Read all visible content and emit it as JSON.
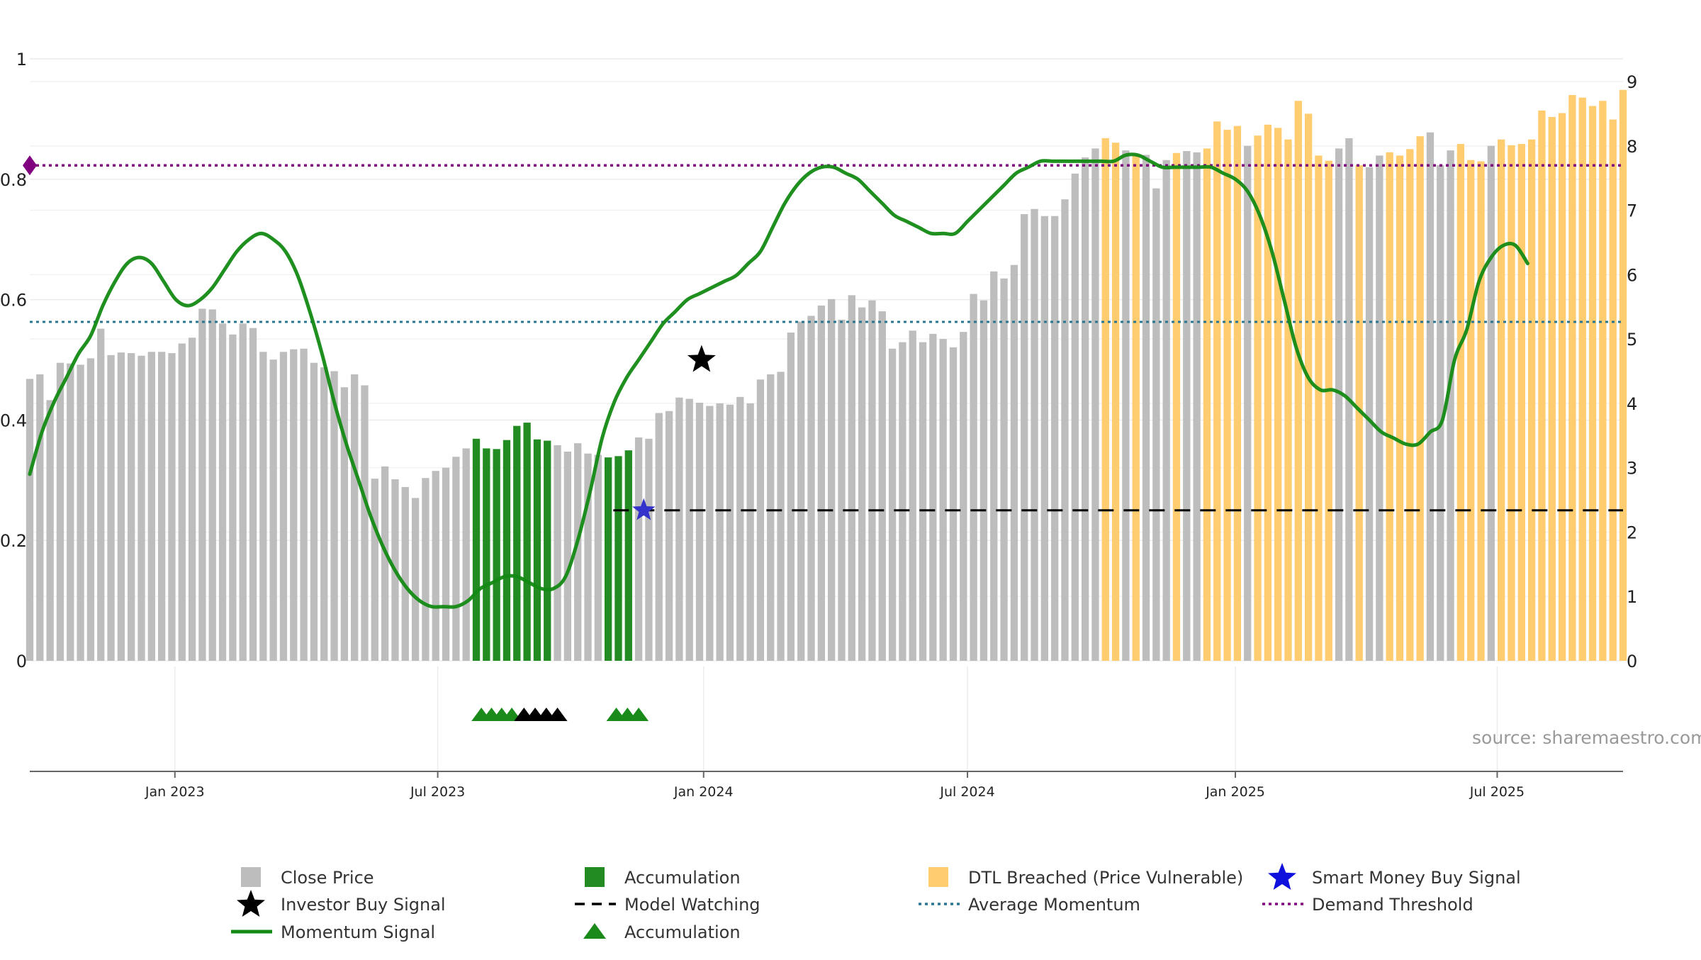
{
  "chart_data": {
    "type": "bar+line",
    "title": "",
    "source_text": "source: sharemaestro.com",
    "colors": {
      "close": "#bdbdbd",
      "accumulation": "#228b22",
      "dtl": "#ffcc70",
      "momentum": "#138a13",
      "average": "#2a7590",
      "threshold": "#800080",
      "model": "#000000",
      "smart_money": "#3333cc",
      "investor": "#000000",
      "triangle_green": "#1a8a1a",
      "triangle_black": "#000000"
    },
    "left_axis": {
      "range": [
        0,
        1
      ],
      "ticks": [
        "0",
        "0.2",
        "0.4",
        "0.6",
        "0.8",
        "1"
      ],
      "tick_values": [
        0,
        0.2,
        0.4,
        0.6,
        0.8,
        1
      ]
    },
    "right_axis": {
      "range": [
        0,
        9
      ],
      "ticks": [
        "0",
        "1",
        "2",
        "3",
        "4",
        "5",
        "6",
        "7",
        "8",
        "9"
      ],
      "tick_values": [
        0,
        1,
        2,
        3,
        4,
        5,
        6,
        7,
        8,
        9
      ]
    },
    "x_axis": {
      "start_week": 0,
      "end_week": 157,
      "ticks": [
        {
          "label": "Jan 2023",
          "week": 14.3
        },
        {
          "label": "Jul 2023",
          "week": 40.2
        },
        {
          "label": "Jan 2024",
          "week": 66.4
        },
        {
          "label": "Jul 2024",
          "week": 92.4
        },
        {
          "label": "Jan 2025",
          "week": 118.8
        },
        {
          "label": "Jul 2025",
          "week": 144.6
        }
      ]
    },
    "close_prices": [
      4.38,
      4.45,
      4.05,
      4.63,
      4.62,
      4.6,
      4.7,
      5.16,
      4.75,
      4.79,
      4.78,
      4.74,
      4.8,
      4.8,
      4.78,
      4.93,
      5.02,
      5.47,
      5.46,
      5.24,
      5.07,
      5.24,
      5.17,
      4.8,
      4.68,
      4.8,
      4.84,
      4.85,
      4.63,
      4.56,
      4.5,
      4.25,
      4.45,
      4.28,
      2.83,
      3.02,
      2.82,
      2.7,
      2.53,
      2.84,
      2.95,
      3.0,
      3.17,
      3.3,
      3.45,
      3.3,
      3.29,
      3.43,
      3.65,
      3.7,
      3.44,
      3.42,
      3.35,
      3.25,
      3.38,
      3.22,
      3.2,
      3.16,
      3.18,
      3.27,
      3.47,
      3.45,
      3.85,
      3.88,
      4.09,
      4.07,
      4.01,
      3.96,
      4.0,
      3.98,
      4.1,
      4.0,
      4.37,
      4.45,
      4.49,
      5.1,
      5.27,
      5.36,
      5.52,
      5.62,
      5.3,
      5.68,
      5.49,
      5.6,
      5.43,
      4.85,
      4.95,
      5.13,
      4.95,
      5.08,
      5.0,
      4.87,
      5.11,
      5.7,
      5.6,
      6.05,
      5.94,
      6.15,
      6.94,
      7.02,
      6.91,
      6.91,
      7.17,
      7.57,
      7.82,
      7.96,
      8.12,
      8.05,
      7.93,
      7.85,
      7.86,
      7.34,
      7.78,
      7.89,
      7.92,
      7.9,
      7.96,
      8.38,
      8.25,
      8.31,
      8.0,
      8.16,
      8.33,
      8.28,
      8.1,
      8.7,
      8.5,
      7.85,
      7.77,
      7.96,
      8.12,
      7.7,
      7.67,
      7.85,
      7.9,
      7.85,
      7.95,
      8.15,
      8.21,
      7.7,
      7.93,
      8.03,
      7.78,
      7.76,
      8.0,
      8.1,
      8.01,
      8.03,
      8.1,
      8.55,
      8.45,
      8.51,
      8.79,
      8.75,
      8.62,
      8.7,
      8.41,
      8.87
    ],
    "accumulation_weeks": [
      44,
      45,
      46,
      47,
      48,
      49,
      50,
      51,
      57,
      58,
      59
    ],
    "dtl_weeks": [
      106,
      107,
      109,
      113,
      116,
      117,
      118,
      119,
      121,
      122,
      123,
      124,
      125,
      126,
      127,
      128,
      131,
      134,
      135,
      136,
      137,
      141,
      142,
      143,
      145,
      146,
      147,
      148,
      149,
      150,
      151,
      152,
      153,
      154,
      155,
      156,
      157
    ],
    "momentum_signal": [
      0.31,
      0.38,
      0.43,
      0.47,
      0.51,
      0.54,
      0.59,
      0.63,
      0.66,
      0.67,
      0.66,
      0.63,
      0.6,
      0.59,
      0.6,
      0.62,
      0.65,
      0.68,
      0.7,
      0.71,
      0.7,
      0.68,
      0.64,
      0.58,
      0.51,
      0.43,
      0.36,
      0.3,
      0.24,
      0.19,
      0.15,
      0.12,
      0.1,
      0.09,
      0.09,
      0.09,
      0.1,
      0.12,
      0.13,
      0.14,
      0.14,
      0.13,
      0.12,
      0.12,
      0.14,
      0.2,
      0.28,
      0.37,
      0.43,
      0.47,
      0.5,
      0.53,
      0.56,
      0.58,
      0.6,
      0.61,
      0.62,
      0.63,
      0.64,
      0.66,
      0.68,
      0.72,
      0.76,
      0.79,
      0.81,
      0.82,
      0.82,
      0.81,
      0.8,
      0.78,
      0.76,
      0.74,
      0.73,
      0.72,
      0.71,
      0.71,
      0.71,
      0.73,
      0.75,
      0.77,
      0.79,
      0.81,
      0.82,
      0.83,
      0.83,
      0.83,
      0.83,
      0.83,
      0.83,
      0.83,
      0.84,
      0.84,
      0.83,
      0.82,
      0.82,
      0.82,
      0.82,
      0.82,
      0.81,
      0.8,
      0.78,
      0.74,
      0.68,
      0.6,
      0.52,
      0.47,
      0.45,
      0.45,
      0.44,
      0.42,
      0.4,
      0.38,
      0.37,
      0.36,
      0.36,
      0.38,
      0.4,
      0.5,
      0.55,
      0.63,
      0.67,
      0.69,
      0.69,
      0.66
    ],
    "momentum_weeks_step": 1.2,
    "average_momentum": 0.563,
    "demand_threshold": 0.823,
    "model_watching": {
      "value": 0.25,
      "start_week": 57.5,
      "end_week": 157
    },
    "smart_money_buy": {
      "week": 60.5,
      "value": 0.25
    },
    "investor_buy": {
      "week": 66.2,
      "value": 0.5
    },
    "accumulation_markers": [
      {
        "week": 44.5,
        "color": "green"
      },
      {
        "week": 45.5,
        "color": "green"
      },
      {
        "week": 46.5,
        "color": "green"
      },
      {
        "week": 47.5,
        "color": "green"
      },
      {
        "week": 48.7,
        "color": "black"
      },
      {
        "week": 49.8,
        "color": "black"
      },
      {
        "week": 50.9,
        "color": "black"
      },
      {
        "week": 52.0,
        "color": "black"
      },
      {
        "week": 57.8,
        "color": "green"
      },
      {
        "week": 58.9,
        "color": "green"
      },
      {
        "week": 60.0,
        "color": "green"
      }
    ],
    "legend": [
      {
        "label": "Close Price",
        "kind": "square",
        "color": "close"
      },
      {
        "label": "Accumulation",
        "kind": "square",
        "color": "accumulation"
      },
      {
        "label": "DTL Breached (Price Vulnerable)",
        "kind": "square",
        "color": "dtl"
      },
      {
        "label": "Smart Money Buy Signal",
        "kind": "star",
        "color": "blue"
      },
      {
        "label": "Investor Buy Signal",
        "kind": "star",
        "color": "black"
      },
      {
        "label": "Model Watching",
        "kind": "dash",
        "color": "model"
      },
      {
        "label": "Average Momentum",
        "kind": "dot",
        "color": "average"
      },
      {
        "label": "Demand Threshold",
        "kind": "dot",
        "color": "threshold"
      },
      {
        "label": "Momentum Signal",
        "kind": "line",
        "color": "momentum"
      },
      {
        "label": "Accumulation",
        "kind": "triangle",
        "color": "triangle_green"
      }
    ]
  }
}
